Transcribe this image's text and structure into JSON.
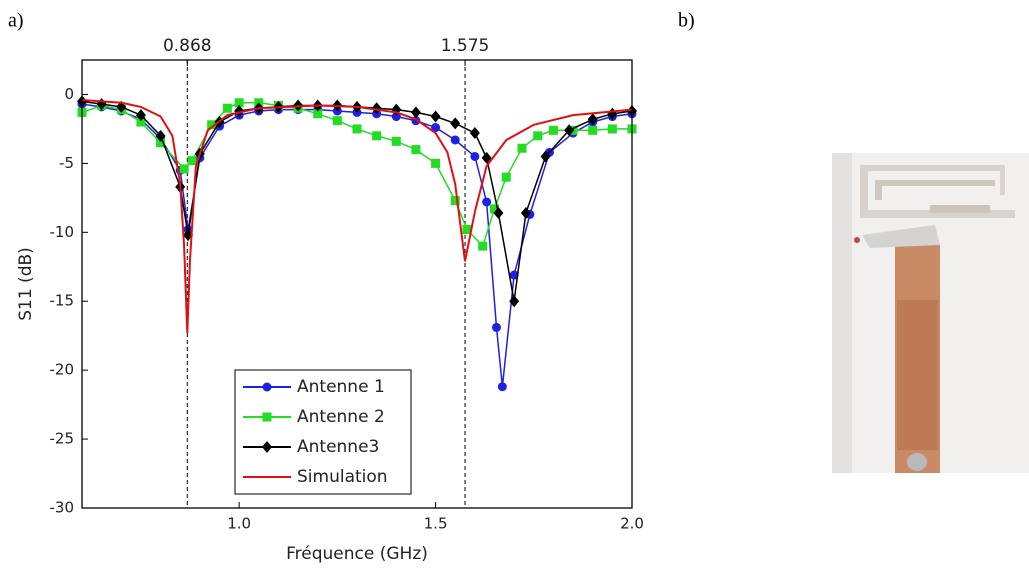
{
  "panel_labels": [
    "a)",
    "b)"
  ],
  "chart_data": {
    "type": "line",
    "x_label": "Fréquence (GHz)",
    "y_label": "S11 (dB)",
    "xlim": [
      0.6,
      2.0
    ],
    "ylim": [
      -30,
      2.5
    ],
    "xticks": [
      {
        "value": 1,
        "label": "1.0"
      },
      {
        "value": 1.5,
        "label": "1.5"
      },
      {
        "value": 2,
        "label": "2.0"
      }
    ],
    "yticks": [
      0,
      -5,
      -10,
      -15,
      -20,
      -25,
      -30
    ],
    "x2ticks": [
      0.868,
      1.575
    ],
    "legend": "lower-left",
    "series": [
      {
        "name": "Antenne 1",
        "color": "#1f1fe6",
        "marker": "circle",
        "x": [
          0.6,
          0.65,
          0.7,
          0.75,
          0.8,
          0.85,
          0.87,
          0.9,
          0.95,
          1.0,
          1.05,
          1.1,
          1.15,
          1.2,
          1.25,
          1.3,
          1.35,
          1.4,
          1.45,
          1.5,
          1.55,
          1.6,
          1.63,
          1.655,
          1.67,
          1.7,
          1.74,
          1.79,
          1.85,
          1.9,
          1.95,
          2.0
        ],
        "values": [
          -0.7,
          -0.9,
          -1.2,
          -1.8,
          -3.2,
          -5.5,
          -9.8,
          -4.6,
          -2.3,
          -1.5,
          -1.2,
          -1.1,
          -1.1,
          -1.1,
          -1.2,
          -1.3,
          -1.4,
          -1.6,
          -1.9,
          -2.4,
          -3.3,
          -4.5,
          -7.8,
          -16.9,
          -21.2,
          -13.1,
          -8.7,
          -4.2,
          -2.8,
          -2.0,
          -1.6,
          -1.4
        ]
      },
      {
        "name": "Antenne 2",
        "color": "#22dd22",
        "marker": "square",
        "x": [
          0.6,
          0.65,
          0.7,
          0.75,
          0.8,
          0.86,
          0.88,
          0.93,
          0.97,
          1.0,
          1.05,
          1.1,
          1.15,
          1.2,
          1.25,
          1.3,
          1.35,
          1.4,
          1.45,
          1.5,
          1.55,
          1.58,
          1.62,
          1.65,
          1.68,
          1.72,
          1.76,
          1.8,
          1.85,
          1.9,
          1.95,
          2.0
        ],
        "values": [
          -1.3,
          -0.8,
          -1.1,
          -2.0,
          -3.5,
          -5.4,
          -4.8,
          -2.2,
          -1.0,
          -0.6,
          -0.6,
          -0.8,
          -1.0,
          -1.4,
          -1.9,
          -2.5,
          -3.0,
          -3.4,
          -4.0,
          -5.0,
          -7.7,
          -9.8,
          -11.0,
          -8.3,
          -6.0,
          -3.9,
          -3.0,
          -2.6,
          -2.6,
          -2.6,
          -2.5,
          -2.5
        ]
      },
      {
        "name": "Antenne3",
        "color": "#000000",
        "marker": "diamond",
        "x": [
          0.6,
          0.65,
          0.7,
          0.75,
          0.8,
          0.85,
          0.87,
          0.9,
          0.95,
          1.0,
          1.05,
          1.1,
          1.15,
          1.2,
          1.25,
          1.3,
          1.35,
          1.4,
          1.45,
          1.5,
          1.55,
          1.6,
          1.63,
          1.66,
          1.7,
          1.73,
          1.78,
          1.84,
          1.9,
          1.95,
          2.0
        ],
        "values": [
          -0.5,
          -0.7,
          -0.9,
          -1.5,
          -3.0,
          -6.7,
          -10.2,
          -4.3,
          -2.0,
          -1.2,
          -1.0,
          -0.9,
          -0.8,
          -0.8,
          -0.8,
          -0.9,
          -1.0,
          -1.1,
          -1.3,
          -1.6,
          -2.1,
          -2.8,
          -4.6,
          -8.6,
          -15.0,
          -8.6,
          -4.5,
          -2.6,
          -1.8,
          -1.4,
          -1.2
        ]
      },
      {
        "name": "Simulation",
        "color": "#e01010",
        "x": [
          0.6,
          0.7,
          0.75,
          0.8,
          0.83,
          0.85,
          0.86,
          0.868,
          0.875,
          0.89,
          0.92,
          0.97,
          1.05,
          1.2,
          1.3,
          1.4,
          1.45,
          1.5,
          1.53,
          1.55,
          1.575,
          1.6,
          1.63,
          1.68,
          1.75,
          1.85,
          2.0
        ],
        "values": [
          -0.4,
          -0.6,
          -0.9,
          -1.6,
          -3.0,
          -6.5,
          -11,
          -17.3,
          -12,
          -5.2,
          -2.6,
          -1.5,
          -1.0,
          -0.8,
          -0.9,
          -1.3,
          -1.8,
          -2.8,
          -4.2,
          -6.5,
          -12.1,
          -8.5,
          -5.2,
          -3.3,
          -2.2,
          -1.5,
          -1.1
        ]
      }
    ]
  }
}
